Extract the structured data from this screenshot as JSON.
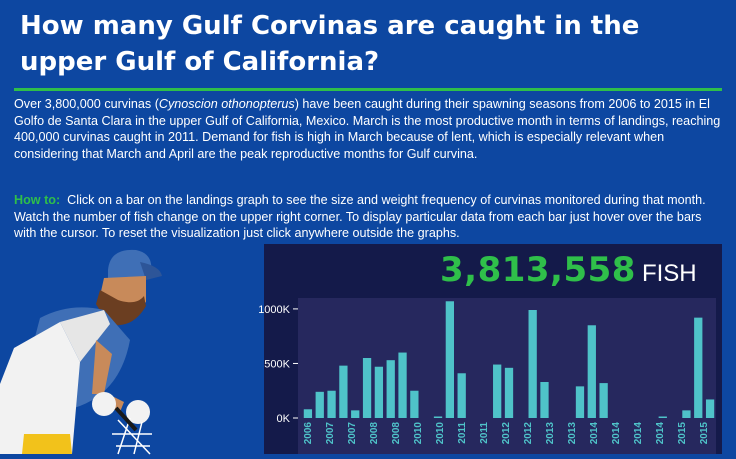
{
  "header": {
    "title": "How many Gulf Corvinas are caught in the upper Gulf of California?"
  },
  "intro": {
    "text_before": "Over 3,800,000 curvinas (",
    "species": "Cynoscion othonopterus",
    "text_after": ") have been caught during their spawning seasons from 2006 to 2015 in El Golfo de Santa Clara in the upper Gulf of California, Mexico. March is the most productive month in terms of landings, reaching 400,000 curvinas caught in 2011. Demand for fish is high in March because of lent, which is especially relevant when considering that March and April are the peak reproductive months for Gulf curvina."
  },
  "howto": {
    "label": "How to:",
    "text": "Click on a bar on the landings graph to see the size and weight frequency of curvinas monitored during that month. Watch the number of fish change on the upper right corner. To display particular data from each bar just hover over the bars with the cursor. To reset the visualization just click anywhere outside the graphs."
  },
  "counter": {
    "value": "3,813,558",
    "unit": "FISH"
  },
  "colors": {
    "background": "#0d47a1",
    "accent_green": "#2fbf4a",
    "bar": "#4fc3c9",
    "panel": "#141a4a",
    "plot": "#26285e"
  },
  "chart_data": {
    "type": "bar",
    "y_tick_labels": [
      "1000K",
      "500K",
      "0K"
    ],
    "y_ticks": [
      1000000,
      500000,
      0
    ],
    "ylim": [
      0,
      1100000
    ],
    "x_labels": [
      "2006",
      "2007",
      "2007",
      "2008",
      "2008",
      "2010",
      "2010",
      "2011",
      "2011",
      "2012",
      "2012",
      "2013",
      "2013",
      "2014",
      "2014",
      "2014",
      "2014",
      "2015",
      "2015"
    ],
    "values": [
      80000,
      240000,
      250000,
      480000,
      70000,
      550000,
      470000,
      530000,
      600000,
      250000,
      0,
      10000,
      1070000,
      410000,
      0,
      0,
      490000,
      460000,
      0,
      990000,
      330000,
      0,
      0,
      290000,
      850000,
      320000,
      0,
      0,
      0,
      0,
      10000,
      0,
      70000,
      920000,
      170000
    ]
  }
}
